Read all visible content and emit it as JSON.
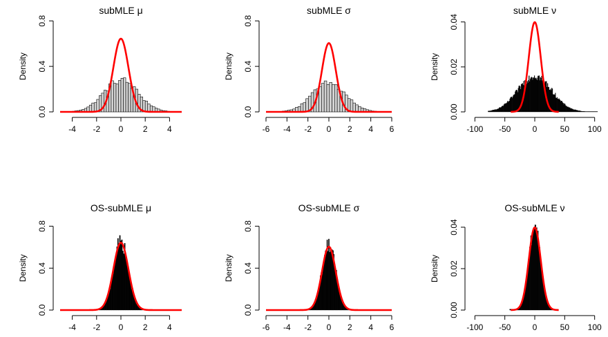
{
  "chart_data": [
    {
      "type": "histogram",
      "title": "subMLE μ",
      "xlabel": "",
      "ylabel": "Density",
      "xlim": [
        -5,
        5
      ],
      "ylim": [
        0,
        0.85
      ],
      "x_ticks": [
        -4,
        -2,
        0,
        2,
        4
      ],
      "x_tick_labels": [
        "-4",
        "-2",
        "0",
        "2",
        "4"
      ],
      "y_ticks": [
        0,
        0.4,
        0.8
      ],
      "y_tick_labels": [
        "0.0",
        "0.4",
        "0.8"
      ],
      "histogram": {
        "sd": 1.4,
        "peak": 0.28,
        "range": [
          -4.6,
          4.6
        ],
        "bin_width": 0.2,
        "fill": "#d3d3d3"
      },
      "overlay_curve": {
        "color": "#ff0000",
        "mean": 0,
        "sd": 0.62
      },
      "grid": false,
      "legend": "none"
    },
    {
      "type": "histogram",
      "title": "subMLE σ",
      "xlabel": "",
      "ylabel": "Density",
      "xlim": [
        -6,
        6
      ],
      "ylim": [
        0,
        0.85
      ],
      "x_ticks": [
        -6,
        -4,
        -2,
        0,
        2,
        4,
        6
      ],
      "x_tick_labels": [
        "-6",
        "-4",
        "-2",
        "0",
        "2",
        "4",
        "6"
      ],
      "y_ticks": [
        0,
        0.4,
        0.8
      ],
      "y_tick_labels": [
        "0.0",
        "0.4",
        "0.8"
      ],
      "histogram": {
        "sd": 1.6,
        "peak": 0.25,
        "range": [
          -5.2,
          5.2
        ],
        "bin_width": 0.25,
        "fill": "#d3d3d3"
      },
      "overlay_curve": {
        "color": "#ff0000",
        "mean": 0,
        "sd": 0.66
      },
      "grid": false,
      "legend": "none"
    },
    {
      "type": "histogram",
      "title": "subMLE ν",
      "xlabel": "",
      "ylabel": "Density",
      "xlim": [
        -105,
        105
      ],
      "ylim": [
        0,
        0.043
      ],
      "x_ticks": [
        -100,
        -50,
        0,
        50,
        100
      ],
      "x_tick_labels": [
        "-100",
        "-50",
        "0",
        "50",
        "100"
      ],
      "y_ticks": [
        0,
        0.02,
        0.04
      ],
      "y_tick_labels": [
        "0.00",
        "0.02",
        "0.04"
      ],
      "histogram": {
        "sd": 28,
        "peak": 0.016,
        "range": [
          -78,
          105
        ],
        "bin_width": 1,
        "fill": "#000000"
      },
      "overlay_curve": {
        "color": "#ff0000",
        "mean": 0,
        "sd": 10
      },
      "grid": false,
      "legend": "none"
    },
    {
      "type": "histogram",
      "title": "OS-subMLE μ",
      "xlabel": "",
      "ylabel": "Density",
      "xlim": [
        -5,
        5
      ],
      "ylim": [
        0,
        0.85
      ],
      "x_ticks": [
        -4,
        -2,
        0,
        2,
        4
      ],
      "x_tick_labels": [
        "-4",
        "-2",
        "0",
        "2",
        "4"
      ],
      "y_ticks": [
        0,
        0.4,
        0.8
      ],
      "y_tick_labels": [
        "0.0",
        "0.4",
        "0.8"
      ],
      "histogram": {
        "sd": 0.6,
        "peak": 0.66,
        "range": [
          -1.8,
          1.8
        ],
        "bin_width": 0.08,
        "fill": "#000000"
      },
      "overlay_curve": {
        "color": "#ff0000",
        "mean": 0,
        "sd": 0.62
      },
      "grid": false,
      "legend": "none"
    },
    {
      "type": "histogram",
      "title": "OS-subMLE σ",
      "xlabel": "",
      "ylabel": "Density",
      "xlim": [
        -6,
        6
      ],
      "ylim": [
        0,
        0.85
      ],
      "x_ticks": [
        -6,
        -4,
        -2,
        0,
        2,
        4,
        6
      ],
      "x_tick_labels": [
        "-6",
        "-4",
        "-2",
        "0",
        "2",
        "4",
        "6"
      ],
      "y_ticks": [
        0,
        0.4,
        0.8
      ],
      "y_tick_labels": [
        "0.0",
        "0.4",
        "0.8"
      ],
      "histogram": {
        "sd": 0.65,
        "peak": 0.63,
        "range": [
          -2.2,
          2.2
        ],
        "bin_width": 0.08,
        "fill": "#000000"
      },
      "overlay_curve": {
        "color": "#ff0000",
        "mean": 0,
        "sd": 0.66
      },
      "grid": false,
      "legend": "none"
    },
    {
      "type": "histogram",
      "title": "OS-subMLE ν",
      "xlabel": "",
      "ylabel": "Density",
      "xlim": [
        -105,
        105
      ],
      "ylim": [
        0,
        0.043
      ],
      "x_ticks": [
        -100,
        -50,
        0,
        50,
        100
      ],
      "x_tick_labels": [
        "-100",
        "-50",
        "0",
        "50",
        "100"
      ],
      "y_ticks": [
        0,
        0.02,
        0.04
      ],
      "y_tick_labels": [
        "0.00",
        "0.02",
        "0.04"
      ],
      "histogram": {
        "sd": 10,
        "peak": 0.041,
        "range": [
          -42,
          38
        ],
        "bin_width": 1,
        "fill": "#000000"
      },
      "overlay_curve": {
        "color": "#ff0000",
        "mean": 0,
        "sd": 10
      },
      "grid": false,
      "legend": "none"
    }
  ]
}
